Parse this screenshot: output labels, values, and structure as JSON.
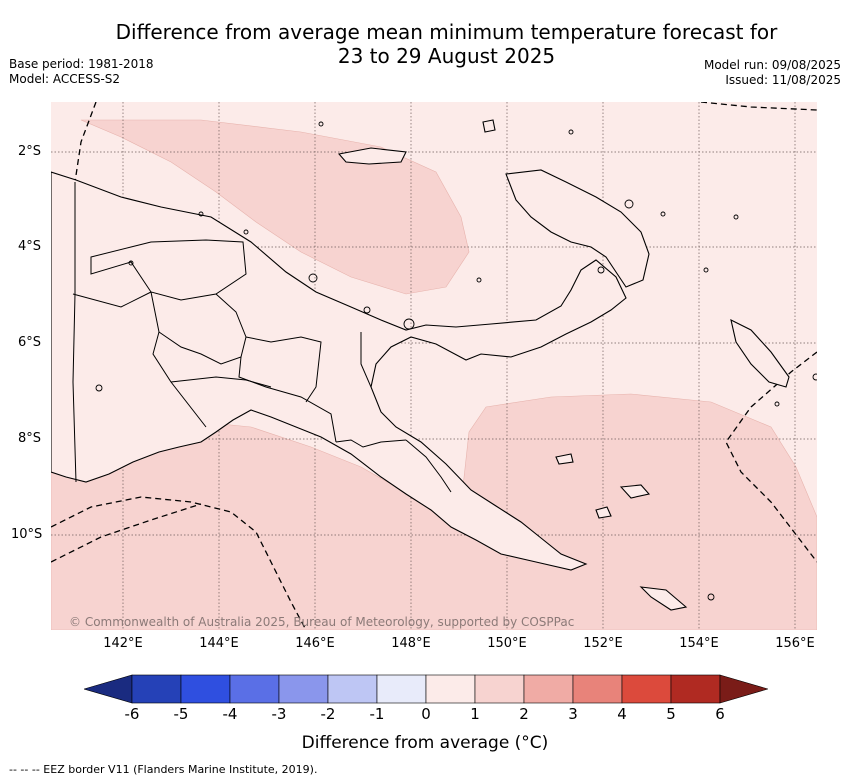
{
  "title_line1": "Difference from average mean minimum temperature forecast for",
  "title_line2": "23 to 29 August 2025",
  "base_period": "Base period: 1981-2018",
  "model": "Model: ACCESS-S2",
  "model_run": "Model run: 09/08/2025",
  "issued": "Issued: 11/08/2025",
  "lat_labels": [
    "2°S",
    "4°S",
    "6°S",
    "8°S",
    "10°S"
  ],
  "lon_labels": [
    "142°E",
    "144°E",
    "146°E",
    "148°E",
    "150°E",
    "152°E",
    "154°E",
    "156°E"
  ],
  "copyright": "© Commonwealth of Australia 2025, Bureau of Meteorology, supported by COSPPac",
  "colorbar": {
    "title": "Difference from average (°C)",
    "ticks": [
      "-6",
      "-5",
      "-4",
      "-3",
      "-2",
      "-1",
      "0",
      "1",
      "2",
      "3",
      "4",
      "5",
      "6"
    ],
    "colors": [
      "#1a2b80",
      "#2541b7",
      "#2f4fe0",
      "#5a6fe6",
      "#8a96ec",
      "#bec6f4",
      "#e8ebfa",
      "#fcebe9",
      "#f7d3d0",
      "#f0aba5",
      "#e8837a",
      "#dc4a3c",
      "#b02a22",
      "#7a1c18"
    ]
  },
  "map_colors": {
    "base": "#fcebe9",
    "warm": "#f7d3d0"
  },
  "footnote": "-- -- -- EEZ border V11 (Flanders Marine Institute, 2019)."
}
